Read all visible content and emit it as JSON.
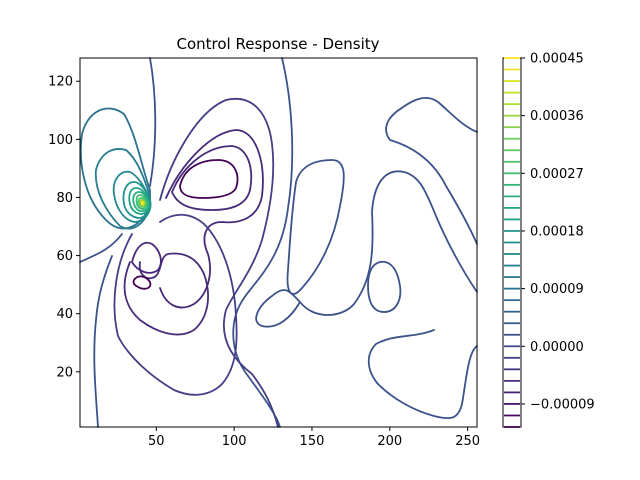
{
  "chart_data": {
    "type": "contour",
    "title": "Control Response - Density",
    "xlabel": "",
    "ylabel": "",
    "xlim": [
      1,
      256
    ],
    "ylim": [
      1,
      128
    ],
    "x_ticks": [
      50,
      100,
      150,
      200,
      250
    ],
    "x_tick_labels": [
      "50",
      "100",
      "150",
      "200",
      "250"
    ],
    "y_ticks": [
      20,
      40,
      60,
      80,
      100,
      120
    ],
    "y_tick_labels": [
      "20",
      "40",
      "60",
      "80",
      "100",
      "120"
    ],
    "colormap": "viridis",
    "colorbar": {
      "min": -0.000126,
      "max": 0.00045,
      "ticks": [
        -9e-05,
        0.0,
        9e-05,
        0.00018,
        0.00027,
        0.00036,
        0.00045
      ],
      "tick_labels": [
        "−0.00009",
        "0.00000",
        "0.00009",
        "0.00018",
        "0.00027",
        "0.00036",
        "0.00045"
      ],
      "levels": [
        -0.000126,
        -0.000108,
        -9e-05,
        -7.2e-05,
        -5.4e-05,
        -3.6e-05,
        -1.8e-05,
        0.0,
        1.8e-05,
        3.6e-05,
        5.4e-05,
        7.2e-05,
        9e-05,
        0.000108,
        0.000126,
        0.000144,
        0.000162,
        0.00018,
        0.000198,
        0.000216,
        0.000234,
        0.000252,
        0.00027,
        0.000288,
        0.000306,
        0.000324,
        0.000342,
        0.00036,
        0.000378,
        0.000396,
        0.000414,
        0.000432,
        0.00045
      ]
    },
    "features": [
      {
        "kind": "positive-peak",
        "x": 40,
        "y": 77,
        "value": 0.00044
      },
      {
        "kind": "negative-trough",
        "x": 85,
        "y": 85,
        "value": -0.000115
      },
      {
        "kind": "negative-trough",
        "x": 40,
        "y": 50,
        "value": -8e-05
      },
      {
        "kind": "negative-lobe",
        "x": 70,
        "y": 45,
        "value": -4e-05
      },
      {
        "kind": "near-zero-loop",
        "x": 200,
        "y": 48,
        "value": 0.0
      }
    ]
  }
}
